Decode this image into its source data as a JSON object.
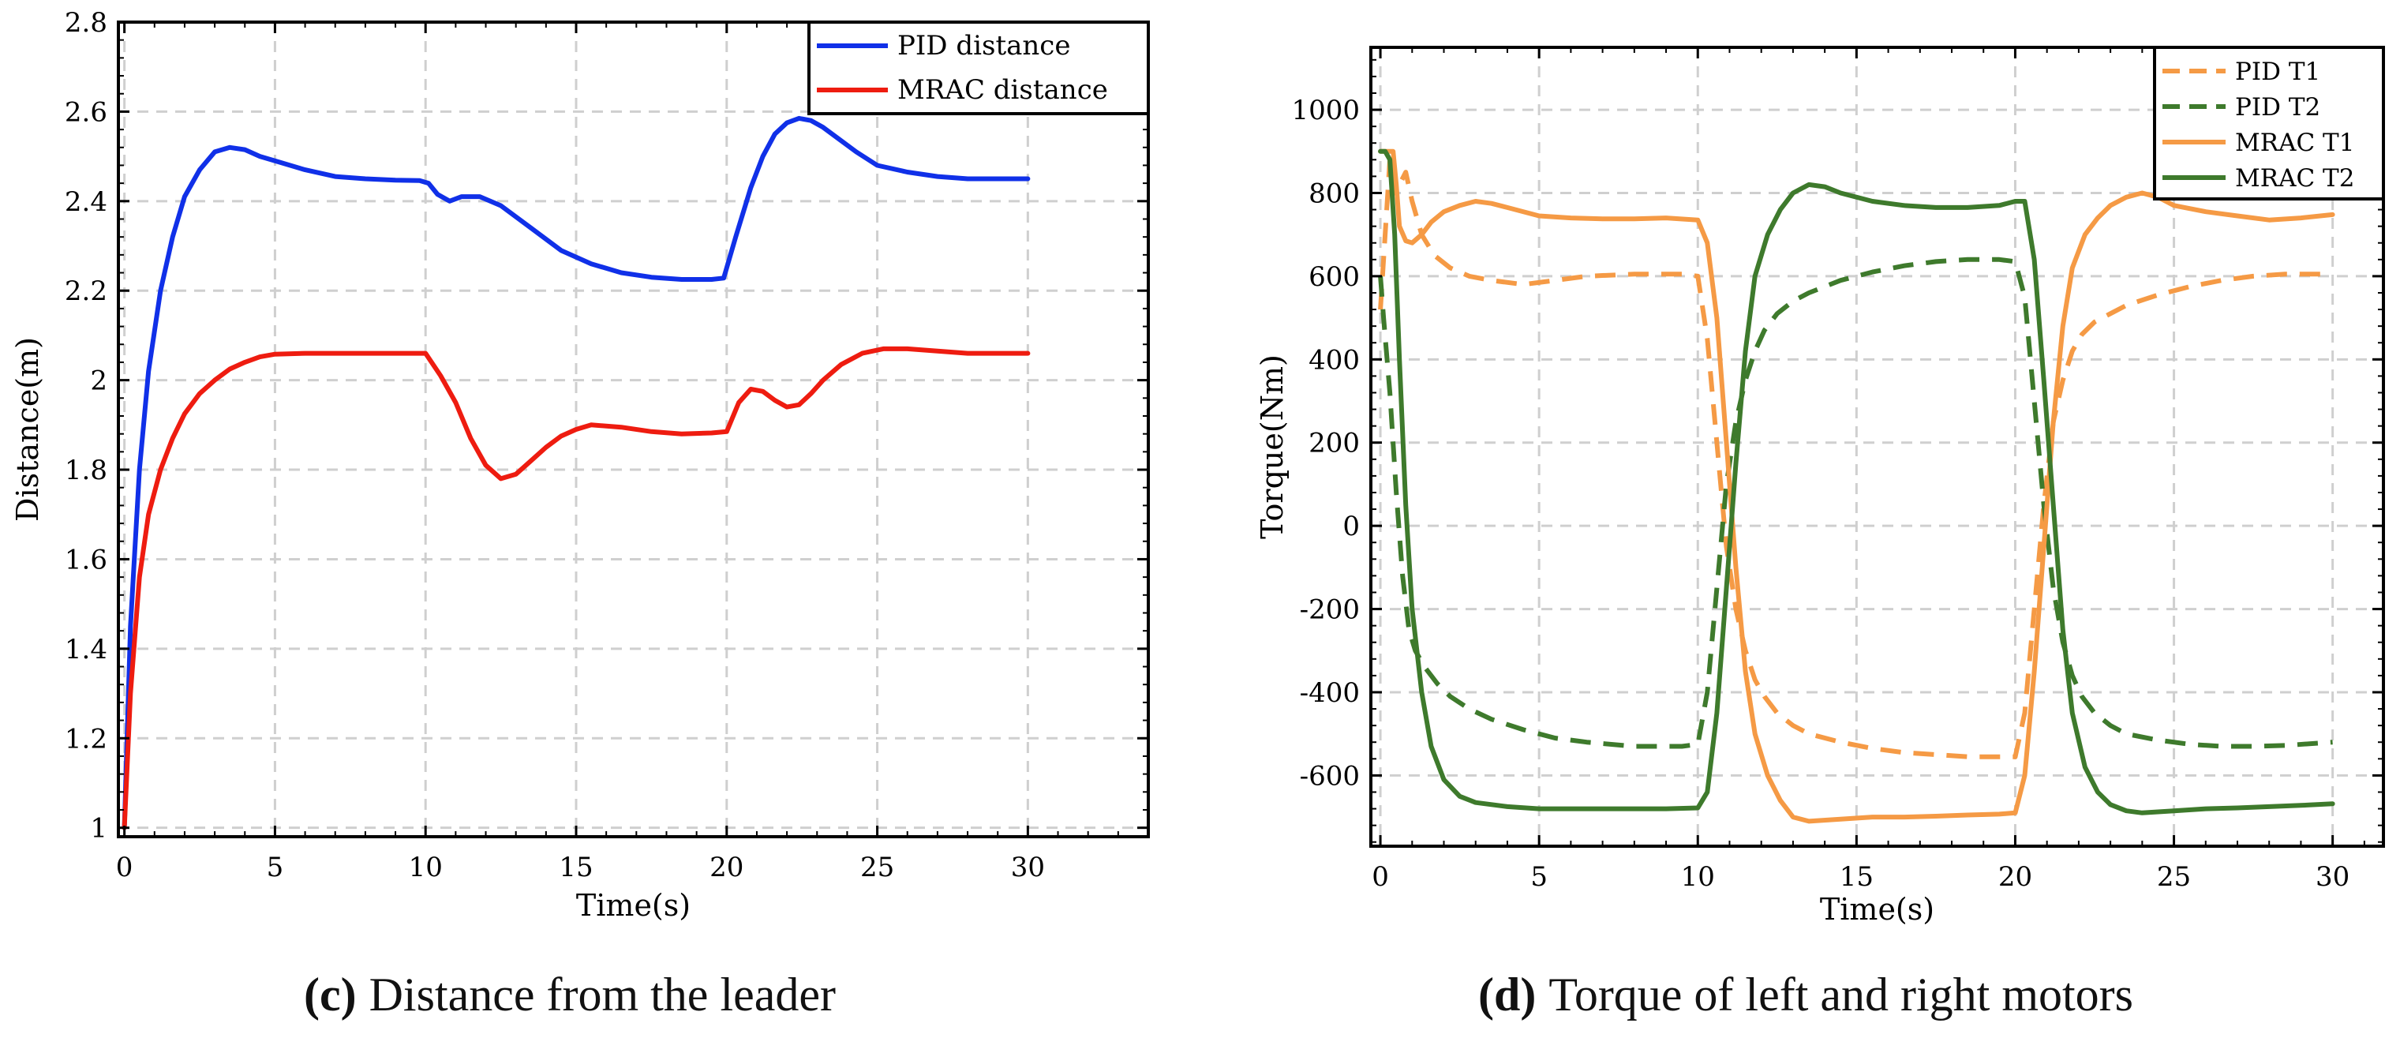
{
  "chart_data": [
    {
      "type": "line",
      "panel": "c",
      "caption_label": "(c)",
      "caption_text": "Distance from the leader",
      "xlabel": "Time(s)",
      "ylabel": "Distance(m)",
      "xlim": [
        -0.2,
        34
      ],
      "ylim": [
        0.98,
        2.8
      ],
      "xticks": [
        0,
        5,
        10,
        15,
        20,
        25,
        30
      ],
      "yticks": [
        1,
        1.2,
        1.4,
        1.6,
        1.8,
        2,
        2.2,
        2.4,
        2.6,
        2.8
      ],
      "ytick_labels": [
        "1",
        "1.2",
        "1.4",
        "1.6",
        "1.8",
        "2",
        "2.2",
        "2.4",
        "2.6",
        "2.8"
      ],
      "grid": true,
      "legend_position": "top-right",
      "colors": {
        "pid": "#1030e8",
        "mrac": "#ee1c10"
      },
      "series": [
        {
          "name": "PID distance",
          "style": "solid",
          "color": "#1030e8",
          "x": [
            0,
            0.2,
            0.5,
            0.8,
            1.2,
            1.6,
            2.0,
            2.5,
            3.0,
            3.5,
            4.0,
            4.5,
            5.0,
            6.0,
            7.0,
            8.0,
            9.0,
            9.8,
            10.1,
            10.4,
            10.8,
            11.2,
            11.8,
            12.5,
            13.5,
            14.5,
            15.5,
            16.5,
            17.5,
            18.5,
            19.5,
            19.9,
            20.3,
            20.8,
            21.2,
            21.6,
            22.0,
            22.4,
            22.8,
            23.2,
            23.7,
            24.3,
            25.0,
            26.0,
            27.0,
            28.0,
            29.0,
            30.0
          ],
          "values": [
            1.0,
            1.45,
            1.8,
            2.02,
            2.2,
            2.32,
            2.41,
            2.47,
            2.51,
            2.52,
            2.515,
            2.5,
            2.49,
            2.47,
            2.455,
            2.45,
            2.447,
            2.446,
            2.44,
            2.415,
            2.4,
            2.41,
            2.41,
            2.39,
            2.34,
            2.29,
            2.26,
            2.24,
            2.23,
            2.225,
            2.225,
            2.228,
            2.32,
            2.43,
            2.5,
            2.55,
            2.575,
            2.585,
            2.58,
            2.565,
            2.54,
            2.51,
            2.48,
            2.465,
            2.455,
            2.45,
            2.45,
            2.45
          ]
        },
        {
          "name": "MRAC distance",
          "style": "solid",
          "color": "#ee1c10",
          "x": [
            0,
            0.2,
            0.5,
            0.8,
            1.2,
            1.6,
            2.0,
            2.5,
            3.0,
            3.5,
            4.0,
            4.5,
            5.0,
            6.0,
            7.0,
            8.0,
            9.0,
            10.0,
            10.5,
            11.0,
            11.5,
            12.0,
            12.5,
            13.0,
            13.5,
            14.0,
            14.5,
            15.0,
            15.5,
            16.5,
            17.5,
            18.5,
            19.5,
            20.0,
            20.4,
            20.8,
            21.2,
            21.6,
            22.0,
            22.4,
            22.8,
            23.2,
            23.8,
            24.5,
            25.2,
            26.0,
            27.0,
            28.0,
            29.0,
            30.0
          ],
          "values": [
            1.0,
            1.3,
            1.56,
            1.7,
            1.8,
            1.87,
            1.925,
            1.97,
            2.0,
            2.025,
            2.04,
            2.052,
            2.058,
            2.06,
            2.06,
            2.06,
            2.06,
            2.06,
            2.01,
            1.95,
            1.87,
            1.81,
            1.78,
            1.79,
            1.82,
            1.85,
            1.875,
            1.89,
            1.9,
            1.895,
            1.885,
            1.88,
            1.882,
            1.885,
            1.95,
            1.98,
            1.975,
            1.955,
            1.94,
            1.945,
            1.97,
            2.0,
            2.035,
            2.06,
            2.07,
            2.07,
            2.065,
            2.06,
            2.06,
            2.06
          ]
        }
      ]
    },
    {
      "type": "line",
      "panel": "d",
      "caption_label": "(d)",
      "caption_text": "Torque of left and right motors",
      "xlabel": "Time(s)",
      "ylabel": "Torque(Nm)",
      "xlim": [
        -0.3,
        31.6
      ],
      "ylim": [
        -770,
        1150
      ],
      "xticks": [
        0,
        5,
        10,
        15,
        20,
        25,
        30
      ],
      "yticks": [
        -600,
        -400,
        -200,
        0,
        200,
        400,
        600,
        800,
        1000
      ],
      "ytick_labels": [
        "-600",
        "-400",
        "-200",
        "0",
        "200",
        "400",
        "600",
        "800",
        "1000"
      ],
      "grid": true,
      "legend_position": "top-right",
      "colors": {
        "t1": "#f59a45",
        "t2": "#3e7a2c"
      },
      "series": [
        {
          "name": "PID T1",
          "style": "dashed",
          "color": "#f59a45",
          "x": [
            0,
            0.15,
            0.3,
            0.45,
            0.6,
            0.8,
            1.0,
            1.3,
            1.7,
            2.2,
            2.8,
            3.5,
            4.5,
            5.5,
            6.5,
            8.0,
            9.5,
            10.0,
            10.3,
            10.6,
            10.9,
            11.2,
            11.5,
            11.8,
            12.1,
            12.5,
            13.0,
            13.5,
            14.5,
            15.5,
            16.5,
            17.5,
            18.5,
            19.5,
            20.0,
            20.3,
            20.6,
            20.9,
            21.2,
            21.5,
            21.8,
            22.1,
            22.5,
            23.0,
            23.5,
            24.5,
            25.5,
            26.5,
            27.5,
            28.5,
            30.0
          ],
          "values": [
            520,
            700,
            880,
            800,
            820,
            850,
            780,
            700,
            650,
            620,
            600,
            590,
            580,
            590,
            600,
            605,
            605,
            600,
            450,
            200,
            -50,
            -200,
            -300,
            -370,
            -410,
            -450,
            -480,
            -500,
            -520,
            -535,
            -545,
            -550,
            -555,
            -555,
            -555,
            -450,
            -200,
            50,
            250,
            350,
            420,
            460,
            490,
            510,
            530,
            555,
            575,
            590,
            600,
            605,
            605
          ]
        },
        {
          "name": "PID T2",
          "style": "dashed",
          "color": "#3e7a2c",
          "x": [
            0,
            0.1,
            0.3,
            0.5,
            0.7,
            0.9,
            1.1,
            1.4,
            1.8,
            2.2,
            2.8,
            3.5,
            4.5,
            5.5,
            6.5,
            8.0,
            9.5,
            10.0,
            10.3,
            10.6,
            10.9,
            11.2,
            11.5,
            11.8,
            12.1,
            12.5,
            13.0,
            13.5,
            14.5,
            15.5,
            16.5,
            17.5,
            18.5,
            19.5,
            20.0,
            20.3,
            20.6,
            20.9,
            21.2,
            21.5,
            21.8,
            22.1,
            22.5,
            23.0,
            23.5,
            24.5,
            25.5,
            26.5,
            27.5,
            28.5,
            30.0
          ],
          "values": [
            600,
            500,
            320,
            80,
            -120,
            -250,
            -300,
            -340,
            -380,
            -410,
            -440,
            -465,
            -490,
            -510,
            -520,
            -530,
            -530,
            -525,
            -400,
            -150,
            100,
            250,
            350,
            420,
            470,
            510,
            540,
            560,
            590,
            610,
            625,
            635,
            640,
            640,
            635,
            550,
            300,
            50,
            -150,
            -280,
            -360,
            -410,
            -450,
            -480,
            -500,
            -515,
            -525,
            -530,
            -530,
            -528,
            -520
          ]
        },
        {
          "name": "MRAC T1",
          "style": "solid",
          "color": "#f59a45",
          "x": [
            0,
            0.2,
            0.4,
            0.5,
            0.6,
            0.8,
            1.0,
            1.3,
            1.6,
            2.0,
            2.5,
            3.0,
            3.5,
            4.0,
            5.0,
            6.0,
            7.0,
            8.0,
            9.0,
            10.0,
            10.3,
            10.6,
            10.9,
            11.2,
            11.5,
            11.8,
            12.2,
            12.6,
            13.0,
            13.5,
            14.5,
            15.5,
            16.5,
            17.5,
            18.5,
            19.5,
            20.0,
            20.3,
            20.6,
            20.9,
            21.2,
            21.5,
            21.8,
            22.2,
            22.6,
            23.0,
            23.5,
            24.0,
            24.5,
            25.0,
            26.0,
            27.0,
            28.0,
            29.0,
            30.0
          ],
          "values": [
            900,
            900,
            900,
            820,
            720,
            685,
            680,
            700,
            730,
            755,
            770,
            780,
            775,
            765,
            745,
            740,
            738,
            738,
            740,
            735,
            680,
            500,
            200,
            -100,
            -350,
            -500,
            -600,
            -660,
            -700,
            -710,
            -705,
            -700,
            -700,
            -698,
            -695,
            -693,
            -690,
            -600,
            -350,
            -50,
            250,
            480,
            620,
            700,
            740,
            770,
            790,
            800,
            790,
            770,
            755,
            745,
            735,
            740,
            748
          ]
        },
        {
          "name": "MRAC T2",
          "style": "solid",
          "color": "#3e7a2c",
          "x": [
            0,
            0.15,
            0.3,
            0.45,
            0.6,
            0.8,
            1.0,
            1.3,
            1.6,
            2.0,
            2.5,
            3.0,
            4.0,
            5.0,
            6.0,
            7.0,
            8.0,
            9.0,
            10.0,
            10.3,
            10.6,
            10.9,
            11.2,
            11.5,
            11.8,
            12.2,
            12.6,
            13.0,
            13.5,
            14.0,
            14.5,
            15.5,
            16.5,
            17.5,
            18.5,
            19.5,
            20.0,
            20.3,
            20.6,
            20.9,
            21.2,
            21.5,
            21.8,
            22.2,
            22.6,
            23.0,
            23.5,
            24.0,
            25.0,
            26.0,
            27.0,
            28.0,
            29.0,
            30.0
          ],
          "values": [
            900,
            900,
            880,
            700,
            400,
            50,
            -200,
            -400,
            -530,
            -610,
            -650,
            -665,
            -675,
            -680,
            -680,
            -680,
            -680,
            -680,
            -678,
            -640,
            -450,
            -150,
            150,
            420,
            600,
            700,
            760,
            800,
            820,
            815,
            800,
            780,
            770,
            765,
            765,
            770,
            780,
            780,
            640,
            350,
            50,
            -250,
            -450,
            -580,
            -640,
            -670,
            -685,
            -690,
            -685,
            -680,
            -678,
            -675,
            -672,
            -668
          ]
        }
      ]
    }
  ]
}
